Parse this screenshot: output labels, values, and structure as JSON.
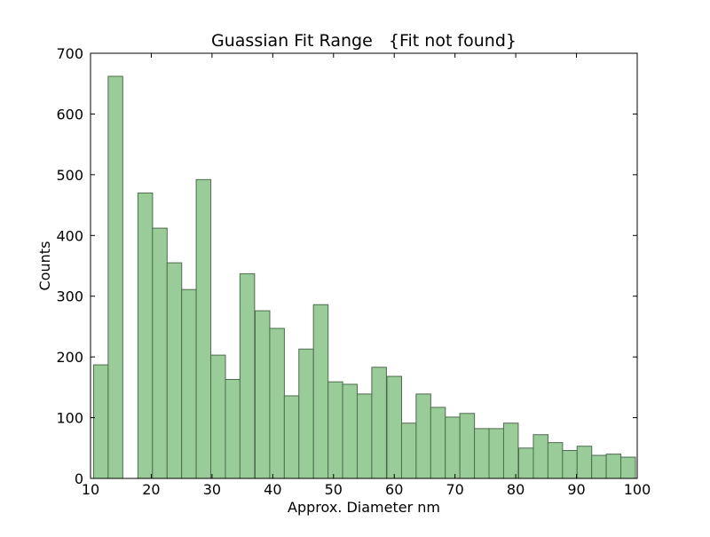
{
  "chart_data": {
    "type": "bar",
    "title": "Guassian Fit Range   {Fit not found}",
    "xlabel": "Approx. Diameter nm",
    "ylabel": "Counts",
    "xlim": [
      10,
      100
    ],
    "ylim": [
      0,
      700
    ],
    "xticks": [
      "10",
      "20",
      "30",
      "40",
      "50",
      "60",
      "70",
      "80",
      "90",
      "100"
    ],
    "yticks": [
      "0",
      "100",
      "200",
      "300",
      "400",
      "500",
      "600",
      "700"
    ],
    "grid": false,
    "legend": "none",
    "bar_color": "#99cc99",
    "bar_edge_color": "#4d6b4d",
    "series": [
      {
        "x": [
          10.5,
          12.9,
          15.4,
          17.8,
          20.2,
          22.6,
          25.0,
          27.4,
          29.8,
          32.2,
          34.6,
          37.1,
          39.5,
          41.9,
          44.3,
          46.7,
          49.1,
          51.5,
          53.9,
          56.3,
          58.8,
          61.2,
          63.6,
          66.0,
          68.4,
          70.8,
          73.2,
          75.6,
          78.0,
          80.5,
          82.9,
          85.3,
          87.7,
          90.1,
          92.5,
          94.9,
          97.3
        ],
        "values": [
          187,
          662,
          0,
          470,
          412,
          355,
          311,
          492,
          203,
          163,
          337,
          276,
          247,
          136,
          213,
          286,
          159,
          155,
          139,
          183,
          168,
          91,
          139,
          117,
          101,
          107,
          82,
          82,
          91,
          50,
          72,
          59,
          46,
          53,
          38,
          40,
          35
        ]
      }
    ]
  }
}
